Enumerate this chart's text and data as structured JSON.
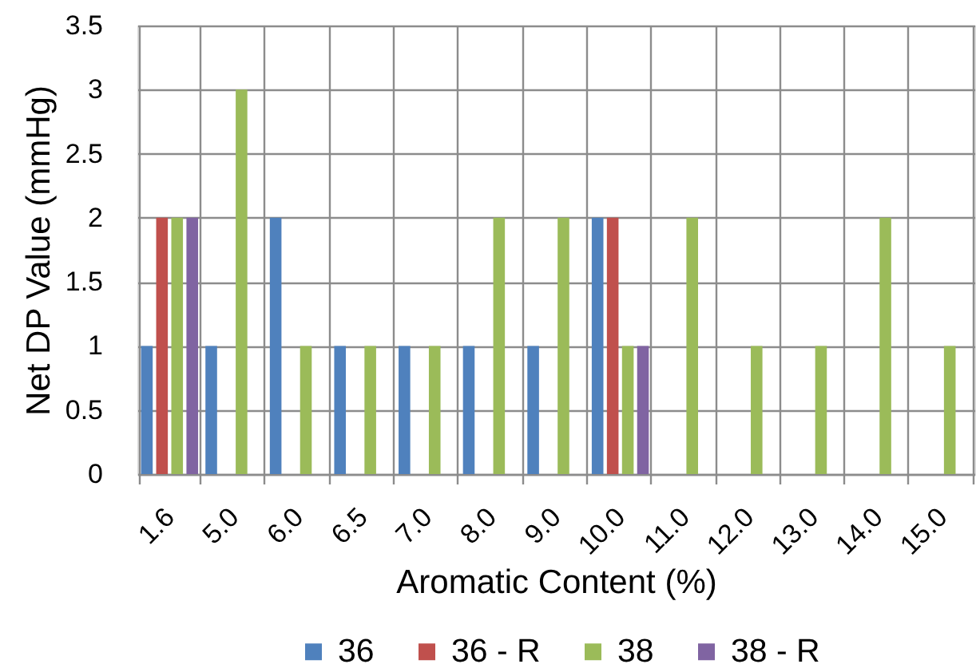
{
  "chart_data": {
    "type": "bar",
    "xlabel": "Aromatic Content (%)",
    "ylabel": "Net DP Value (mmHg)",
    "categories": [
      "1.6",
      "5.0",
      "6.0",
      "6.5",
      "7.0",
      "8.0",
      "9.0",
      "10.0",
      "11.0",
      "12.0",
      "13.0",
      "14.0",
      "15.0"
    ],
    "series": [
      {
        "name": "36",
        "color": "#4f81bd",
        "values": [
          1,
          1,
          2,
          1,
          1,
          1,
          1,
          2,
          null,
          null,
          null,
          null,
          null
        ]
      },
      {
        "name": "36 - R",
        "color": "#c0504d",
        "values": [
          2,
          null,
          null,
          null,
          null,
          null,
          null,
          2,
          null,
          null,
          null,
          null,
          null
        ]
      },
      {
        "name": "38",
        "color": "#9bbb59",
        "values": [
          2,
          3,
          1,
          1,
          1,
          2,
          2,
          1,
          2,
          1,
          1,
          2,
          1
        ]
      },
      {
        "name": "38 - R",
        "color": "#8064a2",
        "values": [
          2,
          null,
          null,
          null,
          null,
          null,
          null,
          1,
          null,
          null,
          null,
          null,
          null
        ]
      }
    ],
    "ylim": [
      0,
      3.5
    ],
    "yticks": [
      0,
      0.5,
      1,
      1.5,
      2,
      2.5,
      3,
      3.5
    ],
    "grid": true,
    "legend": "bottom"
  }
}
